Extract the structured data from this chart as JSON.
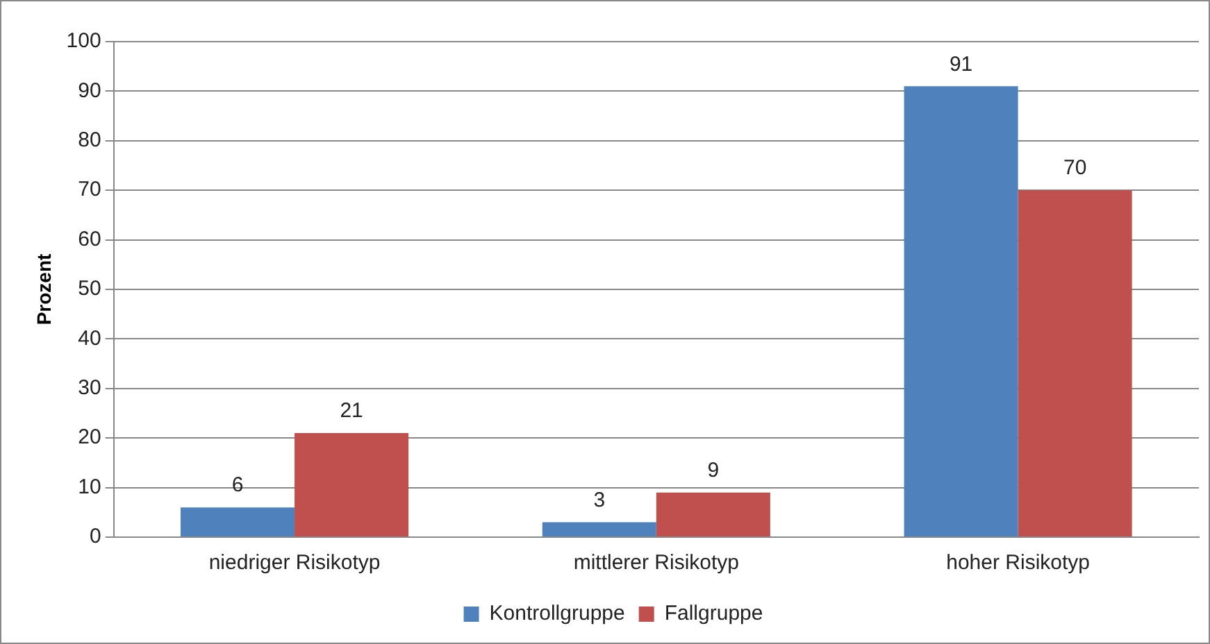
{
  "chart_data": {
    "type": "bar",
    "ylabel": "Prozent",
    "categories": [
      "niedriger Risikotyp",
      "mittlerer Risikotyp",
      "hoher Risikotyp"
    ],
    "series": [
      {
        "name": "Kontrollgruppe",
        "color": "#4f81bd",
        "values": [
          6,
          3,
          91
        ]
      },
      {
        "name": "Fallgruppe",
        "color": "#c0504d",
        "values": [
          21,
          9,
          70
        ]
      }
    ],
    "ylim": [
      0,
      100
    ],
    "yticks": [
      0,
      10,
      20,
      30,
      40,
      50,
      60,
      70,
      80,
      90,
      100
    ],
    "grid": "y",
    "legend": "bottom",
    "data_labels": true
  }
}
